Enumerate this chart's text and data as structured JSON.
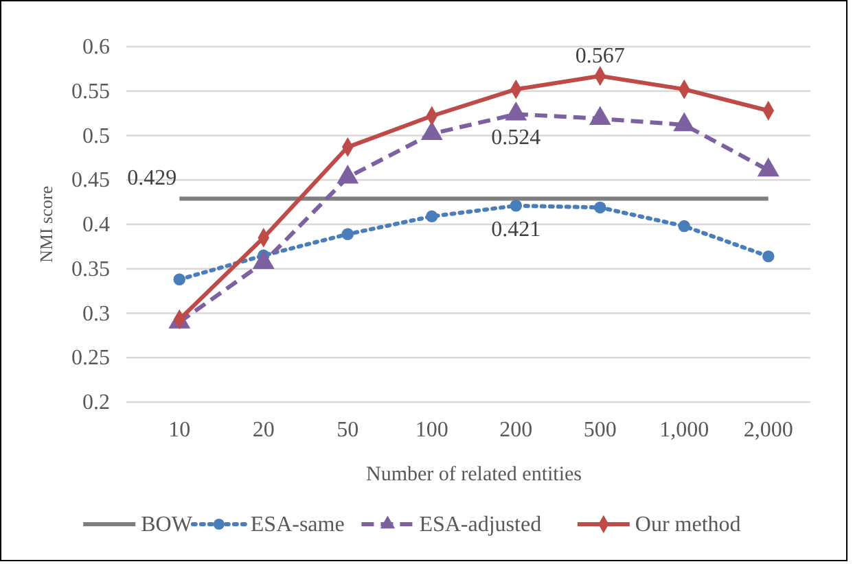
{
  "chart_data": {
    "type": "line",
    "xlabel": "Number of related entities",
    "ylabel": "NMI score",
    "categories": [
      "10",
      "20",
      "50",
      "100",
      "200",
      "500",
      "1,000",
      "2,000"
    ],
    "ylim": [
      0.2,
      0.6
    ],
    "yticks": [
      0.2,
      0.25,
      0.3,
      0.35,
      0.4,
      0.45,
      0.5,
      0.55,
      0.6
    ],
    "grid": "y",
    "legend": "bottom",
    "series": [
      {
        "name": "BOW",
        "color": "#7f7f7f",
        "marker": "none",
        "line_style": "solid",
        "values": [
          0.429,
          0.429,
          0.429,
          0.429,
          0.429,
          0.429,
          0.429,
          0.429
        ],
        "value_labels": [
          "0.429",
          null,
          null,
          null,
          null,
          null,
          null,
          null
        ]
      },
      {
        "name": "ESA-same",
        "color": "#4a7ebb",
        "marker": "circle",
        "line_style": "dotted",
        "values": [
          0.338,
          0.365,
          0.389,
          0.409,
          0.421,
          0.419,
          0.398,
          0.364
        ],
        "value_labels": [
          null,
          null,
          null,
          null,
          "0.421",
          null,
          null,
          null
        ]
      },
      {
        "name": "ESA-adjusted",
        "color": "#7d60a0",
        "marker": "triangle",
        "line_style": "dashed",
        "values": [
          0.29,
          0.357,
          0.453,
          0.502,
          0.524,
          0.519,
          0.512,
          0.461
        ],
        "value_labels": [
          null,
          null,
          null,
          null,
          "0.524",
          null,
          null,
          null
        ]
      },
      {
        "name": "Our method",
        "color": "#be4b48",
        "marker": "diamond",
        "line_style": "solid",
        "values": [
          0.293,
          0.385,
          0.487,
          0.522,
          0.552,
          0.567,
          0.552,
          0.528
        ],
        "value_labels": [
          null,
          null,
          null,
          null,
          null,
          "0.567",
          null,
          null
        ]
      }
    ]
  }
}
